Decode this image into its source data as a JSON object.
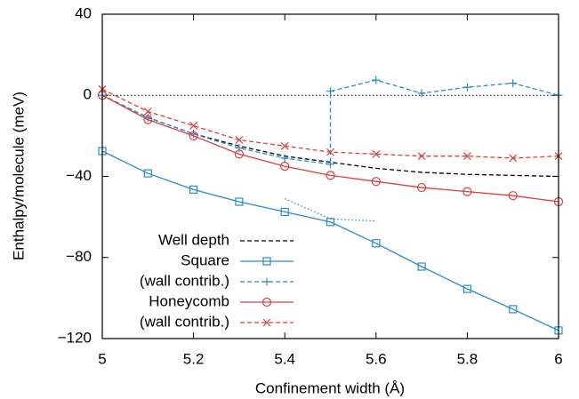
{
  "chart_data": {
    "type": "line",
    "xlabel": "Confinement width (Å)",
    "ylabel": "Enthalpy/molecule (meV)",
    "xlim": [
      5,
      6
    ],
    "xticks": [
      5,
      5.2,
      5.4,
      5.6,
      5.8,
      6
    ],
    "ylim": [
      -120,
      40
    ],
    "yticks": [
      {
        "value": -120,
        "label": "−120"
      },
      {
        "value": -80,
        "label": "−80"
      },
      {
        "value": -40,
        "label": "−40"
      },
      0,
      40
    ],
    "reference_line": 0,
    "legend": "lower left",
    "series": [
      {
        "name": "Well depth",
        "color": "#000000",
        "dash": "dashed",
        "marker": "none",
        "x": [
          5,
          5.1,
          5.2,
          5.3,
          5.4,
          5.5,
          5.6,
          5.7,
          5.8,
          5.9,
          6
        ],
        "values": [
          0,
          -11,
          -19,
          -25,
          -30,
          -33,
          -36,
          -38,
          -39,
          -39.5,
          -40
        ]
      },
      {
        "name": "Square",
        "color": "#2a8bc9",
        "dash": "solid",
        "marker": "square",
        "x": [
          5,
          5.1,
          5.2,
          5.3,
          5.4,
          5.5,
          5.6,
          5.7,
          5.8,
          5.9,
          6
        ],
        "values": [
          -27.5,
          -38.5,
          -46.5,
          -52.5,
          -57.5,
          -62.5,
          -73,
          -84.5,
          -95.5,
          -105.5,
          -116
        ]
      },
      {
        "name": "(wall contrib.)",
        "color": "#2a8bc9",
        "dash": "dashed",
        "marker": "plus",
        "x": [
          5,
          5.1,
          5.2,
          5.3,
          5.4,
          5.5,
          5.5,
          5.6,
          5.7,
          5.8,
          5.9,
          6
        ],
        "values": [
          0,
          -11,
          -19,
          -26,
          -31,
          -34,
          2,
          7.5,
          1,
          4,
          6,
          0
        ]
      },
      {
        "name": "Honeycomb",
        "color": "#d94040",
        "dash": "solid",
        "marker": "circle",
        "x": [
          5,
          5.1,
          5.2,
          5.3,
          5.4,
          5.5,
          5.6,
          5.7,
          5.8,
          5.9,
          6
        ],
        "values": [
          0,
          -12,
          -20,
          -29,
          -35,
          -39.5,
          -42.5,
          -45.5,
          -47.5,
          -49.5,
          -52.5
        ]
      },
      {
        "name": "(wall contrib.)",
        "color": "#d94040",
        "dash": "dashed",
        "marker": "cross",
        "x": [
          5,
          5.1,
          5.2,
          5.3,
          5.4,
          5.5,
          5.6,
          5.7,
          5.8,
          5.9,
          6
        ],
        "values": [
          3,
          -8,
          -15,
          -22,
          -25,
          -28,
          -29,
          -30,
          -30,
          -31,
          -30
        ]
      },
      {
        "color": "#2a8bc9",
        "dash": "dotted",
        "marker": "none",
        "x": [
          5.4,
          5.5,
          5.6
        ],
        "values": [
          -51,
          -61,
          -62
        ]
      }
    ]
  }
}
